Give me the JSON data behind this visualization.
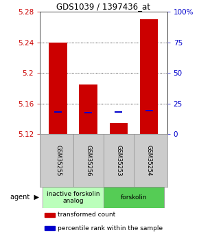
{
  "title": "GDS1039 / 1397436_at",
  "samples": [
    "GSM35255",
    "GSM35256",
    "GSM35253",
    "GSM35254"
  ],
  "red_values": [
    5.24,
    5.185,
    5.135,
    5.27
  ],
  "blue_values": [
    5.148,
    5.147,
    5.148,
    5.15
  ],
  "red_base": 5.12,
  "ylim": [
    5.12,
    5.28
  ],
  "yticks_left": [
    5.12,
    5.16,
    5.2,
    5.24,
    5.28
  ],
  "yticks_right": [
    0,
    25,
    50,
    75,
    100
  ],
  "ytick_labels_left": [
    "5.12",
    "5.16",
    "5.2",
    "5.24",
    "5.28"
  ],
  "ytick_labels_right": [
    "0",
    "25",
    "50",
    "75",
    "100%"
  ],
  "bar_width": 0.6,
  "red_color": "#cc0000",
  "blue_color": "#0000cc",
  "agent_groups": [
    {
      "label": "inactive forskolin\nanalog",
      "cols": [
        0,
        1
      ],
      "color": "#bbffbb"
    },
    {
      "label": "forskolin",
      "cols": [
        2,
        3
      ],
      "color": "#55cc55"
    }
  ],
  "agent_label": "agent",
  "legend_items": [
    {
      "color": "#cc0000",
      "label": "transformed count"
    },
    {
      "color": "#0000cc",
      "label": "percentile rank within the sample"
    }
  ],
  "grid_color": "black",
  "bar_area_bg": "white",
  "xlabel_area_bg": "#cccccc",
  "blue_bar_height": 0.002,
  "blue_bar_width": 0.25
}
